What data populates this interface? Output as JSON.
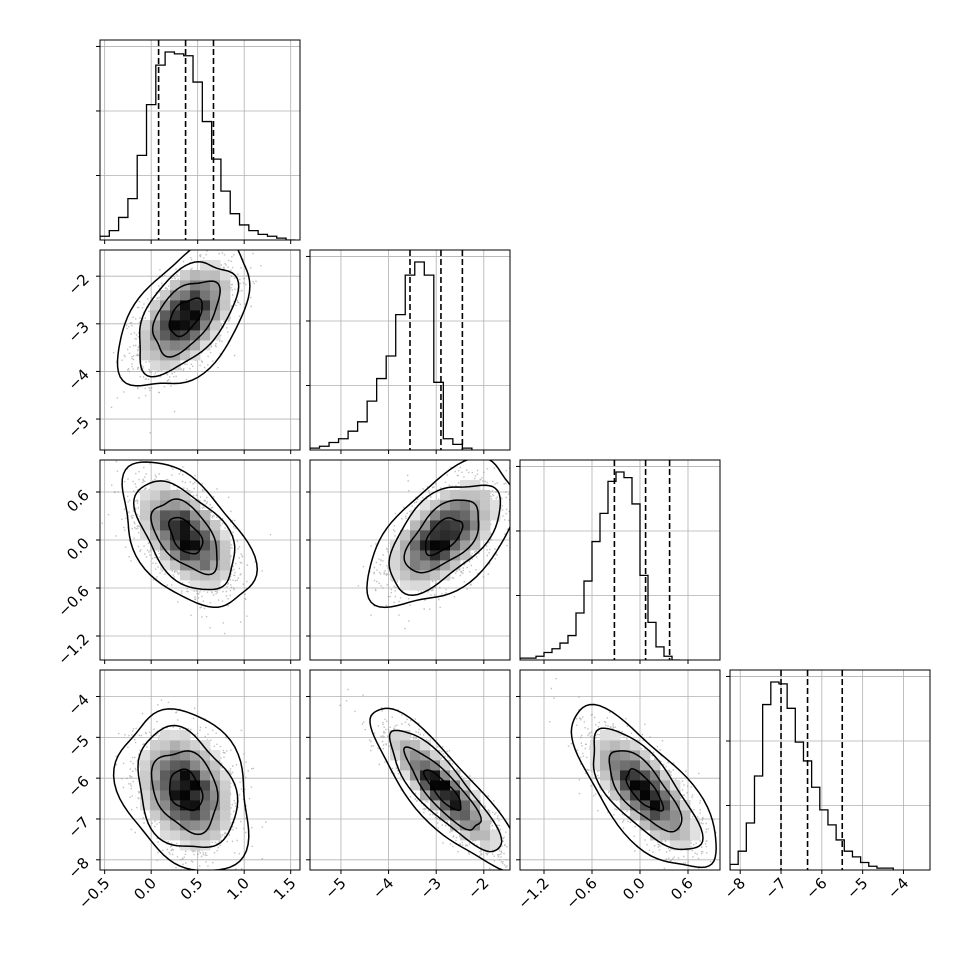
{
  "chart_data": {
    "type": "corner",
    "title": "",
    "parameters": [
      {
        "label": "",
        "range": [
          -0.55,
          1.6
        ],
        "ticks": [
          "−0.5",
          "0.0",
          "0.5",
          "1.0",
          "1.5"
        ],
        "tick_values": [
          -0.5,
          0.0,
          0.5,
          1.0,
          1.5
        ],
        "quantiles": [
          0.08,
          0.37,
          0.67
        ],
        "hist_bin_width": 0.1,
        "histogram": [
          0.02,
          0.05,
          0.12,
          0.22,
          0.45,
          0.72,
          0.93,
          1.0,
          0.99,
          0.98,
          0.84,
          0.63,
          0.43,
          0.26,
          0.14,
          0.08,
          0.05,
          0.03,
          0.02,
          0.01,
          0.0
        ]
      },
      {
        "label": "",
        "range": [
          -5.65,
          -1.45
        ],
        "ticks": [
          "−5",
          "−4",
          "−3",
          "−2"
        ],
        "tick_values": [
          -5,
          -4,
          -3,
          -2
        ],
        "quantiles": [
          -3.55,
          -2.9,
          -2.45
        ],
        "hist_bin_width": 0.2,
        "histogram": [
          0.01,
          0.02,
          0.04,
          0.06,
          0.1,
          0.15,
          0.26,
          0.38,
          0.5,
          0.72,
          0.93,
          1.0,
          0.93,
          0.36,
          0.06,
          0.03,
          0.01
        ]
      },
      {
        "label": "",
        "range": [
          -1.5,
          1.0
        ],
        "ticks": [
          "−1.2",
          "−0.6",
          "0.0",
          "0.6"
        ],
        "tick_values": [
          -1.2,
          -0.6,
          0.0,
          0.6
        ],
        "quantiles": [
          -0.32,
          0.07,
          0.37
        ],
        "hist_bin_width": 0.1,
        "histogram": [
          0.01,
          0.01,
          0.02,
          0.04,
          0.06,
          0.09,
          0.13,
          0.25,
          0.42,
          0.63,
          0.78,
          0.95,
          1.0,
          0.97,
          0.83,
          0.45,
          0.2,
          0.07,
          0.02,
          0.0
        ]
      },
      {
        "label": "",
        "range": [
          -8.25,
          -3.35
        ],
        "ticks": [
          "−8",
          "−7",
          "−6",
          "−5",
          "−4"
        ],
        "tick_values": [
          -8,
          -7,
          -6,
          -5,
          -4
        ],
        "quantiles": [
          -7.0,
          -6.35,
          -5.5
        ],
        "hist_bin_width": 0.2,
        "histogram": [
          0.03,
          0.1,
          0.25,
          0.5,
          0.88,
          1.0,
          0.99,
          0.86,
          0.68,
          0.58,
          0.44,
          0.32,
          0.24,
          0.16,
          0.1,
          0.07,
          0.04,
          0.02,
          0.01,
          0.01
        ]
      }
    ],
    "pairs": [
      {
        "x": 0,
        "y": 1,
        "mean": [
          0.37,
          -2.85
        ],
        "sigma": [
          0.25,
          0.55
        ],
        "correlation": 0.5
      },
      {
        "x": 0,
        "y": 2,
        "mean": [
          0.37,
          0.05
        ],
        "sigma": [
          0.25,
          0.32
        ],
        "correlation": -0.5
      },
      {
        "x": 1,
        "y": 2,
        "mean": [
          -2.85,
          0.05
        ],
        "sigma": [
          0.55,
          0.32
        ],
        "correlation": 0.55
      },
      {
        "x": 0,
        "y": 3,
        "mean": [
          0.37,
          -6.3
        ],
        "sigma": [
          0.25,
          0.7
        ],
        "correlation": -0.25
      },
      {
        "x": 1,
        "y": 3,
        "mean": [
          -2.85,
          -6.3
        ],
        "sigma": [
          0.55,
          0.7
        ],
        "correlation": -0.85
      },
      {
        "x": 2,
        "y": 3,
        "mean": [
          0.05,
          -6.3
        ],
        "sigma": [
          0.32,
          0.7
        ],
        "correlation": -0.72
      }
    ],
    "contour_levels_sigma": [
      0.5,
      1.0,
      1.5,
      2.0
    ],
    "grid": true,
    "legend": "none",
    "colors": {
      "line": "#000000",
      "points": "#8c8c8c",
      "grid": "#b0b0b0"
    }
  }
}
